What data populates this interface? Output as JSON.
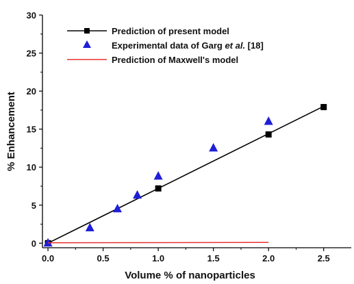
{
  "chart_data": {
    "type": "scatter",
    "xlabel": "Volume % of nanoparticles",
    "ylabel": "% Enhancement",
    "xlim": [
      -0.05,
      2.75
    ],
    "ylim": [
      -0.6,
      30
    ],
    "x_ticks": [
      "0.0",
      "0.5",
      "1.0",
      "1.5",
      "2.0",
      "2.5"
    ],
    "y_ticks": [
      "0",
      "5",
      "10",
      "15",
      "20",
      "25",
      "30"
    ],
    "legend_position": "top-left",
    "series": [
      {
        "name": "Prediction of present model",
        "kind": "line-with-markers",
        "marker": "square",
        "color": "#000000",
        "line": {
          "x": [
            0,
            2.5
          ],
          "y": [
            0,
            18.0
          ]
        },
        "markers": {
          "x": [
            0,
            1.0,
            2.0,
            2.5
          ],
          "y": [
            0,
            7.2,
            14.3,
            17.9
          ]
        }
      },
      {
        "name": "Experimental data of Garg et al. [18]",
        "kind": "scatter",
        "marker": "triangle",
        "color": "#1f1fd8",
        "x": [
          0,
          0.38,
          0.63,
          0.81,
          1.0,
          1.5,
          2.0
        ],
        "y": [
          0,
          2.0,
          4.5,
          6.3,
          8.8,
          12.5,
          16.0
        ]
      },
      {
        "name": "Prediction of Maxwell's model",
        "kind": "line",
        "color": "#e83030",
        "x": [
          0,
          2.0
        ],
        "y": [
          0.05,
          0.1
        ]
      }
    ],
    "legend": [
      {
        "text": "Prediction of present model",
        "parts": [
          {
            "t": "Prediction of present model",
            "italic": false
          }
        ]
      },
      {
        "text": "Experimental data of Garg et al. [18]",
        "parts": [
          {
            "t": "Experimental data of Garg ",
            "italic": false
          },
          {
            "t": "et al.",
            "italic": true
          },
          {
            "t": " [18]",
            "italic": false
          }
        ]
      },
      {
        "text": "Prediction of Maxwell's model",
        "parts": [
          {
            "t": "Prediction of Maxwell's model",
            "italic": false
          }
        ]
      }
    ]
  }
}
